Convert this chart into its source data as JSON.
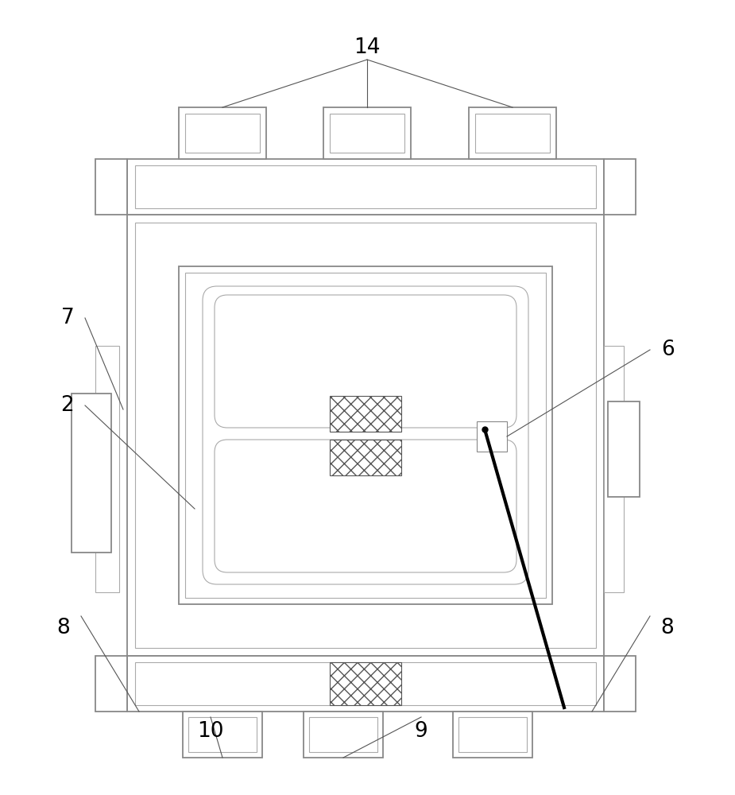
{
  "bg_color": "#ffffff",
  "lc": "#888888",
  "lc2": "#aaaaaa",
  "bk": "#000000",
  "ann_c": "#555555",
  "fig_width": 9.25,
  "fig_height": 10.0,
  "dpi": 100,
  "lw1": 1.3,
  "lw2": 0.8,
  "lw3": 0.6
}
